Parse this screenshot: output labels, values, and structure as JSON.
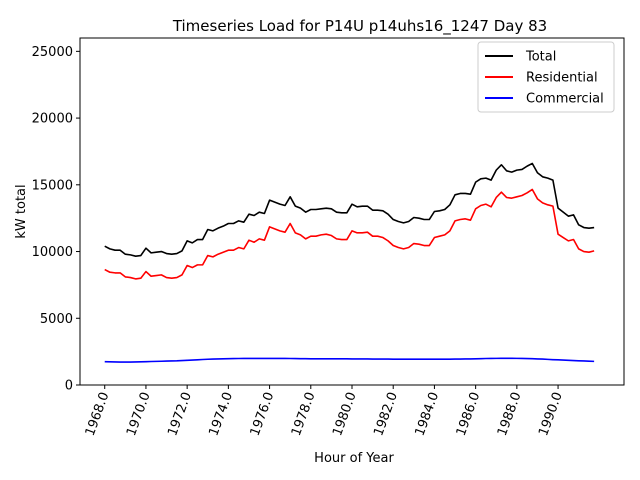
{
  "chart_data": {
    "type": "line",
    "title": "Timeseries Load for P14U p14uhs16_1247  Day 83",
    "xlabel": "Hour of Year",
    "ylabel": "kW total",
    "xlim": [
      1966.8,
      1993.2
    ],
    "ylim": [
      0,
      26000
    ],
    "xticks": [
      1968,
      1970,
      1972,
      1974,
      1976,
      1978,
      1980,
      1982,
      1984,
      1986,
      1988,
      1990
    ],
    "xtick_labels": [
      "1968.0",
      "1970.0",
      "1972.0",
      "1974.0",
      "1976.0",
      "1978.0",
      "1980.0",
      "1982.0",
      "1984.0",
      "1986.0",
      "1988.0",
      "1990.0"
    ],
    "yticks": [
      0,
      5000,
      10000,
      15000,
      20000,
      25000
    ],
    "ytick_labels": [
      "0",
      "5000",
      "10000",
      "15000",
      "20000",
      "25000"
    ],
    "legend_position": "top-right",
    "x": [
      1968.0,
      1968.25,
      1968.5,
      1968.75,
      1969.0,
      1969.25,
      1969.5,
      1969.75,
      1970.0,
      1970.25,
      1970.5,
      1970.75,
      1971.0,
      1971.25,
      1971.5,
      1971.75,
      1972.0,
      1972.25,
      1972.5,
      1972.75,
      1973.0,
      1973.25,
      1973.5,
      1973.75,
      1974.0,
      1974.25,
      1974.5,
      1974.75,
      1975.0,
      1975.25,
      1975.5,
      1975.75,
      1976.0,
      1976.25,
      1976.5,
      1976.75,
      1977.0,
      1977.25,
      1977.5,
      1977.75,
      1978.0,
      1978.25,
      1978.5,
      1978.75,
      1979.0,
      1979.25,
      1979.5,
      1979.75,
      1980.0,
      1980.25,
      1980.5,
      1980.75,
      1981.0,
      1981.25,
      1981.5,
      1981.75,
      1982.0,
      1982.25,
      1982.5,
      1982.75,
      1983.0,
      1983.25,
      1983.5,
      1983.75,
      1984.0,
      1984.25,
      1984.5,
      1984.75,
      1985.0,
      1985.25,
      1985.5,
      1985.75,
      1986.0,
      1986.25,
      1986.5,
      1986.75,
      1987.0,
      1987.25,
      1987.5,
      1987.75,
      1988.0,
      1988.25,
      1988.5,
      1988.75,
      1989.0,
      1989.25,
      1989.5,
      1989.75,
      1990.0,
      1990.25,
      1990.5,
      1990.75,
      1991.0,
      1991.25,
      1991.5,
      1991.75
    ],
    "series": [
      {
        "name": "Total",
        "color": "#000000",
        "values": [
          10400,
          10200,
          10100,
          10100,
          9800,
          9750,
          9650,
          9700,
          10250,
          9900,
          9950,
          10000,
          9850,
          9800,
          9850,
          10050,
          10800,
          10650,
          10900,
          10900,
          11650,
          11550,
          11750,
          11900,
          12100,
          12100,
          12300,
          12200,
          12800,
          12700,
          12950,
          12850,
          13850,
          13700,
          13550,
          13450,
          14100,
          13400,
          13250,
          12950,
          13150,
          13150,
          13200,
          13250,
          13200,
          12950,
          12900,
          12900,
          13550,
          13350,
          13400,
          13400,
          13100,
          13100,
          13050,
          12800,
          12400,
          12250,
          12150,
          12250,
          12550,
          12500,
          12400,
          12400,
          13000,
          13050,
          13150,
          13500,
          14250,
          14350,
          14350,
          14300,
          15200,
          15450,
          15500,
          15350,
          16100,
          16500,
          16050,
          15950,
          16100,
          16150,
          16400,
          16600,
          15900,
          15600,
          15500,
          15350,
          13250,
          12950,
          12650,
          12750,
          12000,
          11800,
          11750,
          11800
        ]
      },
      {
        "name": "Residential",
        "color": "#ff0000",
        "values": [
          8650,
          8450,
          8400,
          8400,
          8100,
          8050,
          7950,
          8000,
          8500,
          8150,
          8200,
          8250,
          8050,
          8000,
          8050,
          8250,
          8950,
          8800,
          9000,
          9000,
          9700,
          9600,
          9800,
          9950,
          10100,
          10100,
          10300,
          10200,
          10850,
          10700,
          10950,
          10850,
          11850,
          11700,
          11550,
          11450,
          12100,
          11400,
          11250,
          10950,
          11150,
          11150,
          11250,
          11300,
          11200,
          10950,
          10900,
          10900,
          11550,
          11400,
          11400,
          11450,
          11150,
          11150,
          11050,
          10800,
          10450,
          10300,
          10200,
          10300,
          10600,
          10550,
          10450,
          10450,
          11050,
          11150,
          11250,
          11550,
          12300,
          12400,
          12450,
          12350,
          13200,
          13450,
          13550,
          13350,
          14050,
          14450,
          14050,
          14000,
          14100,
          14200,
          14400,
          14650,
          13950,
          13650,
          13500,
          13400,
          11300,
          11050,
          10800,
          10900,
          10200,
          10000,
          9950,
          10050
        ]
      },
      {
        "name": "Commercial",
        "color": "#0000ff",
        "values": [
          1750,
          1740,
          1730,
          1720,
          1720,
          1720,
          1730,
          1740,
          1750,
          1760,
          1770,
          1780,
          1790,
          1800,
          1810,
          1830,
          1850,
          1870,
          1890,
          1910,
          1930,
          1940,
          1955,
          1965,
          1975,
          1980,
          1985,
          1990,
          1990,
          1990,
          1990,
          1990,
          1990,
          1990,
          1990,
          1990,
          1985,
          1980,
          1975,
          1970,
          1965,
          1965,
          1965,
          1965,
          1960,
          1960,
          1960,
          1960,
          1955,
          1955,
          1950,
          1950,
          1945,
          1945,
          1940,
          1940,
          1935,
          1935,
          1935,
          1935,
          1935,
          1935,
          1935,
          1935,
          1935,
          1935,
          1935,
          1935,
          1940,
          1945,
          1950,
          1955,
          1965,
          1975,
          1985,
          1990,
          1995,
          2000,
          2000,
          2000,
          1995,
          1990,
          1980,
          1970,
          1955,
          1940,
          1920,
          1900,
          1885,
          1865,
          1850,
          1830,
          1815,
          1800,
          1785,
          1770
        ]
      }
    ]
  }
}
